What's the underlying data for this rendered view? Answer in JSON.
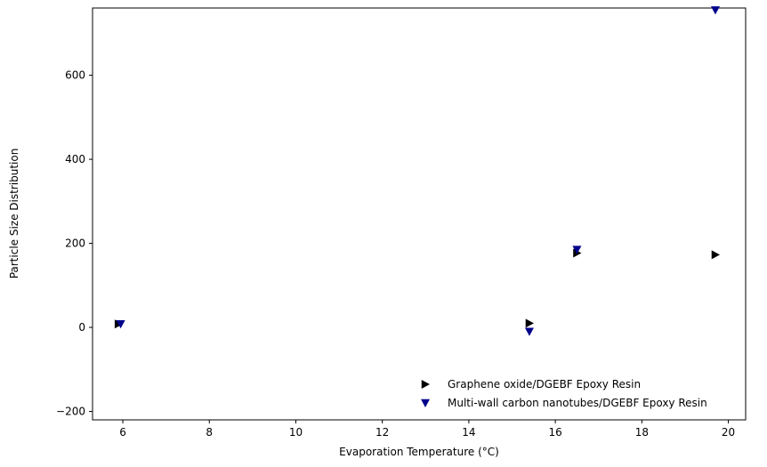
{
  "chart_data": {
    "type": "scatter",
    "title": "",
    "xlabel": "Evaporation Temperature (°C)",
    "ylabel": "Particle Size Distribution",
    "xlim": [
      5.3,
      20.4
    ],
    "ylim": [
      -220,
      760
    ],
    "xticks": [
      6,
      8,
      10,
      12,
      14,
      16,
      18,
      20
    ],
    "yticks": [
      -200,
      0,
      200,
      400,
      600
    ],
    "xtick_labels": [
      "6",
      "8",
      "10",
      "12",
      "14",
      "16",
      "18",
      "20"
    ],
    "ytick_labels": [
      "−200",
      "0",
      "200",
      "400",
      "600"
    ],
    "grid": false,
    "legend_position": "lower-right",
    "series": [
      {
        "name": "Graphene oxide/DGEBF Epoxy Resin",
        "marker": "triangle-right",
        "color": "#000000",
        "points": [
          {
            "x": 5.9,
            "y": 8
          },
          {
            "x": 15.4,
            "y": 10
          },
          {
            "x": 16.5,
            "y": 177
          },
          {
            "x": 19.7,
            "y": 173
          }
        ]
      },
      {
        "name": "Multi-wall carbon nanotubes/DGEBF Epoxy Resin",
        "marker": "triangle-down",
        "color": "#00008b",
        "points": [
          {
            "x": 5.95,
            "y": 8
          },
          {
            "x": 15.4,
            "y": -10
          },
          {
            "x": 16.5,
            "y": 185
          },
          {
            "x": 19.7,
            "y": 755
          }
        ]
      }
    ]
  }
}
